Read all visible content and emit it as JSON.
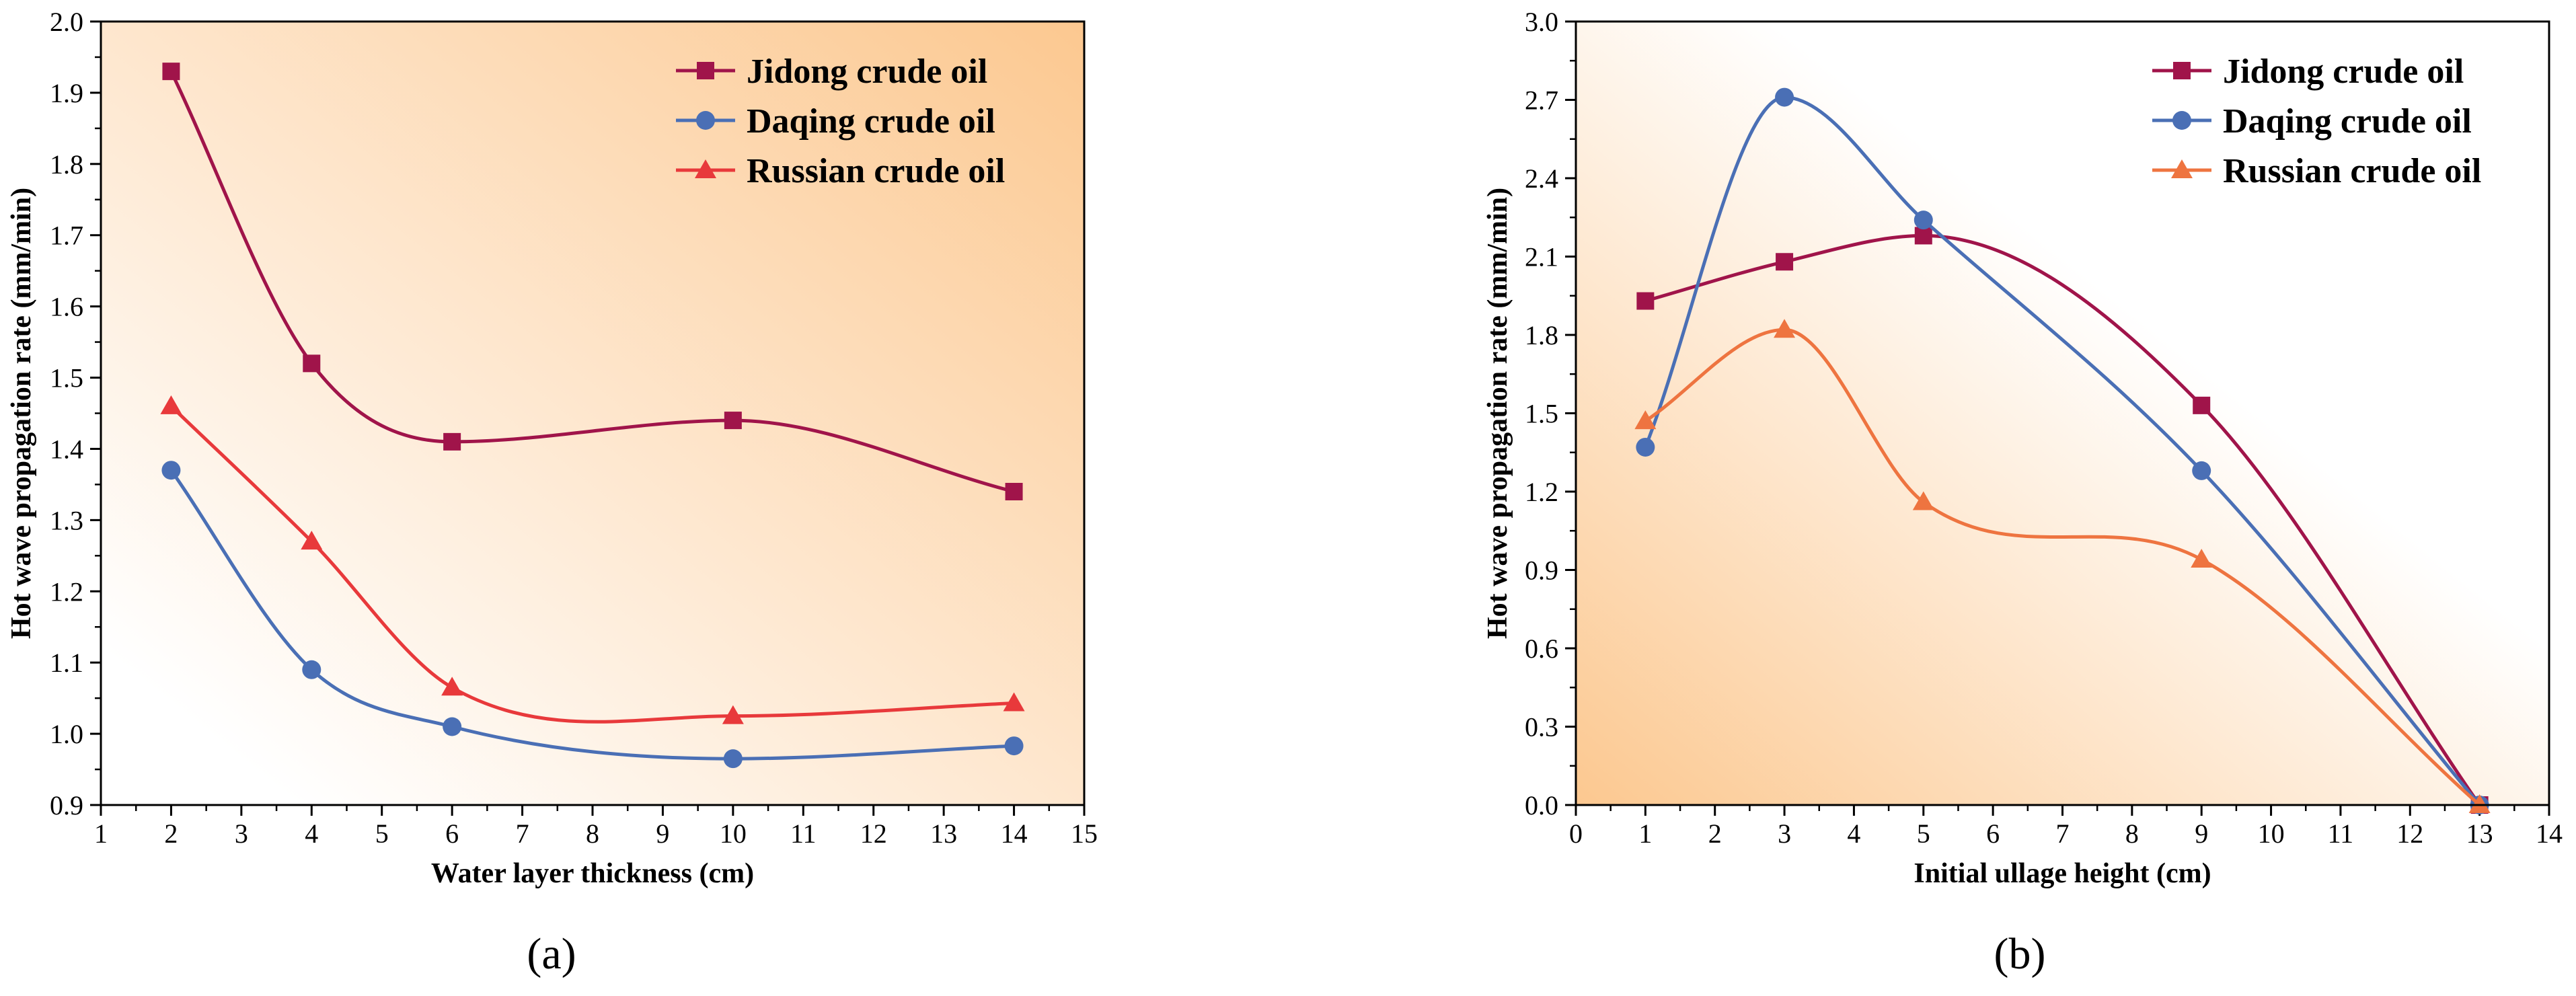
{
  "colors": {
    "jidong": "#A0144A",
    "daqing": "#4A6FB5",
    "russian_a": "#E8393B",
    "russian_b": "#EE7440",
    "gradient_warm": "#FCC890",
    "gradient_white": "#FFFFFF"
  },
  "chart_data": [
    {
      "type": "line",
      "panel_label": "(a)",
      "title": "",
      "xlabel": "Water layer thickness (cm)",
      "ylabel": "Hot wave propagation rate (mm/min)",
      "xlim": [
        1,
        15
      ],
      "ylim": [
        0.9,
        2.0
      ],
      "xticks": [
        1,
        2,
        3,
        4,
        5,
        6,
        7,
        8,
        9,
        10,
        11,
        12,
        13,
        14,
        15
      ],
      "xtick_labels": [
        "1",
        "2",
        "3",
        "4",
        "5",
        "6",
        "7",
        "8",
        "9",
        "10",
        "11",
        "12",
        "13",
        "14",
        "15"
      ],
      "yticks": [
        0.9,
        1.0,
        1.1,
        1.2,
        1.3,
        1.4,
        1.5,
        1.6,
        1.7,
        1.8,
        1.9,
        2.0
      ],
      "ytick_labels": [
        "0.9",
        "1.0",
        "1.1",
        "1.2",
        "1.3",
        "1.4",
        "1.5",
        "1.6",
        "1.7",
        "1.8",
        "1.9",
        "2.0"
      ],
      "legend_position": "top-right",
      "series": [
        {
          "name": "Jidong crude oil",
          "marker": "square",
          "color_key": "jidong",
          "x": [
            2,
            4,
            6,
            10,
            14
          ],
          "y": [
            1.93,
            1.52,
            1.41,
            1.44,
            1.34
          ]
        },
        {
          "name": "Daqing crude oil",
          "marker": "circle",
          "color_key": "daqing",
          "x": [
            2,
            4,
            6,
            10,
            14
          ],
          "y": [
            1.37,
            1.09,
            1.01,
            0.965,
            0.983
          ]
        },
        {
          "name": "Russian crude oil",
          "marker": "triangle",
          "color_key": "russian_a",
          "x": [
            2,
            4,
            6,
            10,
            14
          ],
          "y": [
            1.46,
            1.27,
            1.065,
            1.025,
            1.043
          ]
        }
      ]
    },
    {
      "type": "line",
      "panel_label": "(b)",
      "title": "",
      "xlabel": "Initial ullage height (cm)",
      "ylabel": "Hot wave propagation rate (mm/min)",
      "xlim": [
        0,
        14
      ],
      "ylim": [
        0.0,
        3.0
      ],
      "xticks": [
        0,
        1,
        2,
        3,
        4,
        5,
        6,
        7,
        8,
        9,
        10,
        11,
        12,
        13,
        14
      ],
      "xtick_labels": [
        "0",
        "1",
        "2",
        "3",
        "4",
        "5",
        "6",
        "7",
        "8",
        "9",
        "10",
        "11",
        "12",
        "13",
        "14"
      ],
      "yticks": [
        0.0,
        0.3,
        0.6,
        0.9,
        1.2,
        1.5,
        1.8,
        2.1,
        2.4,
        2.7,
        3.0
      ],
      "ytick_labels": [
        "0.0",
        "0.3",
        "0.6",
        "0.9",
        "1.2",
        "1.5",
        "1.8",
        "2.1",
        "2.4",
        "2.7",
        "3.0"
      ],
      "legend_position": "top-right",
      "series": [
        {
          "name": "Jidong crude oil",
          "marker": "square",
          "color_key": "jidong",
          "x": [
            1,
            3,
            5,
            9,
            13
          ],
          "y": [
            1.93,
            2.08,
            2.18,
            1.53,
            0.0
          ]
        },
        {
          "name": "Daqing crude oil",
          "marker": "circle",
          "color_key": "daqing",
          "x": [
            1,
            3,
            5,
            9,
            13
          ],
          "y": [
            1.37,
            2.71,
            2.24,
            1.28,
            0.0
          ]
        },
        {
          "name": "Russian crude oil",
          "marker": "triangle",
          "color_key": "russian_b",
          "x": [
            1,
            3,
            5,
            9,
            13
          ],
          "y": [
            1.47,
            1.82,
            1.16,
            0.94,
            0.0
          ]
        }
      ]
    }
  ]
}
